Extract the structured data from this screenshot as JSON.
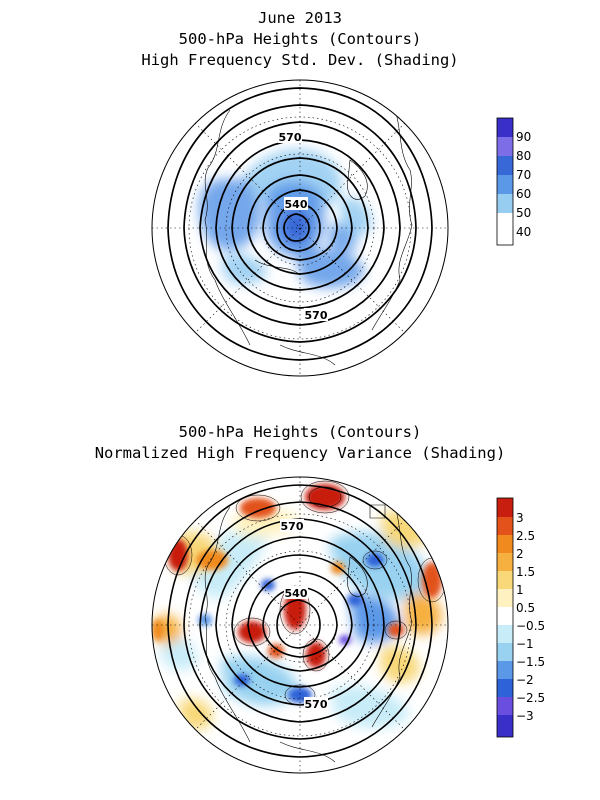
{
  "top_panel": {
    "title_lines": [
      "June 2013",
      "500-hPa Heights (Contours)",
      "High Frequency Std. Dev. (Shading)"
    ],
    "contour_labels": [
      "570",
      "540",
      "570"
    ],
    "colorbar": {
      "ticks": [
        "90",
        "80",
        "70",
        "60",
        "50",
        "40"
      ],
      "colors": [
        "#3a2fc8",
        "#7d6ee8",
        "#3868d8",
        "#5c98e8",
        "#98cdf2",
        "#ffffff"
      ]
    }
  },
  "bottom_panel": {
    "title_lines": [
      "500-hPa Heights (Contours)",
      "Normalized High Frequency Variance (Shading)"
    ],
    "contour_labels": [
      "570",
      "540",
      "570"
    ],
    "colorbar": {
      "ticks": [
        "3",
        "2.5",
        "2",
        "1.5",
        "1",
        "0.5",
        "−0.5",
        "−1",
        "−1.5",
        "−2",
        "−2.5",
        "−3"
      ],
      "colors": [
        "#c81e10",
        "#e2521a",
        "#f08a1e",
        "#f6b040",
        "#f8d878",
        "#fff2c0",
        "#ffffff",
        "#c8ecf8",
        "#98d2f0",
        "#5c98e8",
        "#2e62d8",
        "#6a4ee0",
        "#3a2fc8"
      ]
    }
  },
  "colors": {
    "contour": "#000000",
    "coastline": "#000000",
    "grid": "#000000",
    "blue_shade": "#5c98e8",
    "red_shade": "#c81e10"
  }
}
